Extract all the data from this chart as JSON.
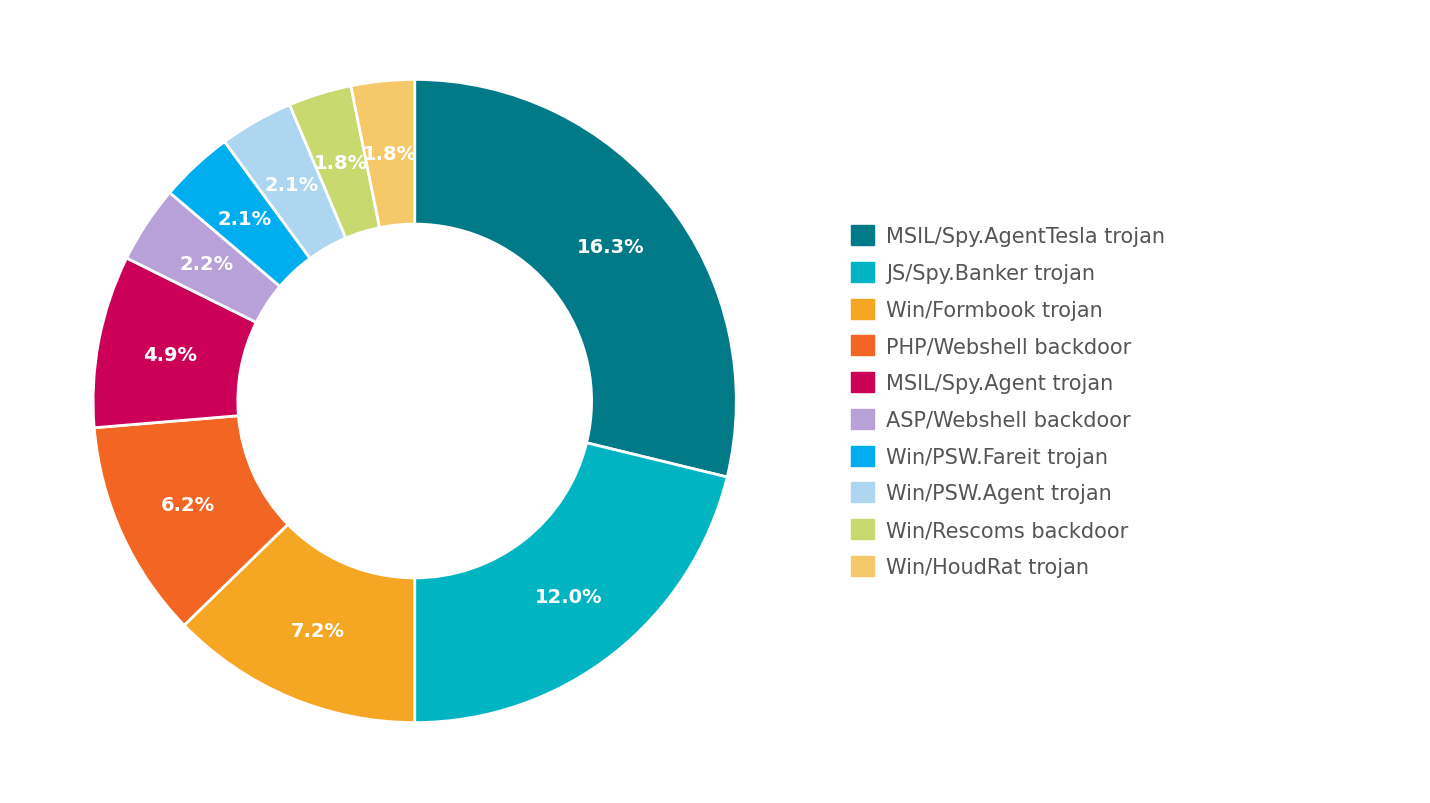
{
  "labels": [
    "MSIL/Spy.AgentTesla trojan",
    "JS/Spy.Banker trojan",
    "Win/Formbook trojan",
    "PHP/Webshell backdoor",
    "MSIL/Spy.Agent trojan",
    "ASP/Webshell backdoor",
    "Win/PSW.Fareit trojan",
    "Win/PSW.Agent trojan",
    "Win/Rescoms backdoor",
    "Win/HoudRat trojan"
  ],
  "values": [
    16.3,
    12.0,
    7.2,
    6.2,
    4.9,
    2.2,
    2.1,
    2.1,
    1.8,
    1.8
  ],
  "colors": [
    "#007a87",
    "#00b5c1",
    "#f5a623",
    "#f26522",
    "#cc0057",
    "#b8a0d8",
    "#00aeef",
    "#aed6f1",
    "#c8d96f",
    "#f5c96a"
  ],
  "background_color": "#ffffff",
  "text_color": "#ffffff",
  "pct_fontsize": 14,
  "legend_fontsize": 15,
  "legend_text_color": "#555555"
}
